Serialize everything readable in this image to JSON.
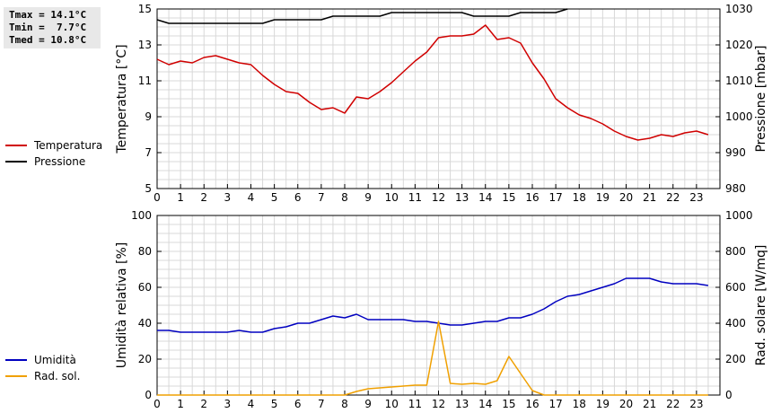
{
  "stats": {
    "tmax": "Tmax = 14.1°C",
    "tmin": "Tmin =  7.7°C",
    "tmed": "Tmed = 10.8°C"
  },
  "chart_data": [
    {
      "type": "line",
      "ylabel_left": "Temperatura [°C]",
      "ylabel_right": "Pressione [mbar]",
      "xlim": [
        0,
        24
      ],
      "ylim_left": [
        5,
        15
      ],
      "ylim_right": [
        980,
        1030
      ],
      "xticks": [
        0,
        1,
        2,
        3,
        4,
        5,
        6,
        7,
        8,
        9,
        10,
        11,
        12,
        13,
        14,
        15,
        16,
        17,
        18,
        19,
        20,
        21,
        22,
        23
      ],
      "yticks_left": [
        5,
        7,
        9,
        11,
        13,
        15
      ],
      "yticks_right": [
        980,
        990,
        1000,
        1010,
        1020,
        1030
      ],
      "grid": true,
      "legend_position": "left",
      "series": [
        {
          "name": "Temperatura",
          "axis": "left",
          "color": "#d00000",
          "x": [
            0,
            0.5,
            1,
            1.5,
            2,
            2.5,
            3,
            3.5,
            4,
            4.5,
            5,
            5.5,
            6,
            6.5,
            7,
            7.5,
            8,
            8.5,
            9,
            9.5,
            10,
            10.5,
            11,
            11.5,
            12,
            12.5,
            13,
            13.5,
            14,
            14.5,
            15,
            15.5,
            16,
            16.5,
            17,
            17.5,
            18,
            18.5,
            19,
            19.5,
            20,
            20.5,
            21,
            21.5,
            22,
            22.5,
            23,
            23.5
          ],
          "values": [
            12.2,
            11.9,
            12.1,
            12.0,
            12.3,
            12.4,
            12.2,
            12.0,
            11.9,
            11.3,
            10.8,
            10.4,
            10.3,
            9.8,
            9.4,
            9.5,
            9.2,
            10.1,
            10.0,
            10.4,
            10.9,
            11.5,
            12.1,
            12.6,
            13.4,
            13.5,
            13.5,
            13.6,
            14.1,
            13.3,
            13.4,
            13.1,
            12.0,
            11.1,
            10.0,
            9.5,
            9.1,
            8.9,
            8.6,
            8.2,
            7.9,
            7.7,
            7.8,
            8.0,
            7.9,
            8.1,
            8.2,
            8.0
          ]
        },
        {
          "name": "Pressione",
          "axis": "right",
          "color": "#000000",
          "x": [
            0,
            0.5,
            1,
            1.5,
            2,
            2.5,
            3,
            3.5,
            4,
            4.5,
            5,
            5.5,
            6,
            6.5,
            7,
            7.5,
            8,
            8.5,
            9,
            9.5,
            10,
            10.5,
            11,
            11.5,
            12,
            12.5,
            13,
            13.5,
            14,
            14.5,
            15,
            15.5,
            16,
            16.5,
            17,
            17.5
          ],
          "values": [
            1027,
            1026,
            1026,
            1026,
            1026,
            1026,
            1026,
            1026,
            1026,
            1026,
            1027,
            1027,
            1027,
            1027,
            1027,
            1028,
            1028,
            1028,
            1028,
            1028,
            1029,
            1029,
            1029,
            1029,
            1029,
            1029,
            1029,
            1028,
            1028,
            1028,
            1028,
            1029,
            1029,
            1029,
            1029,
            1030
          ]
        }
      ]
    },
    {
      "type": "line",
      "ylabel_left": "Umidità relativa [%]",
      "ylabel_right": "Rad. solare [W/mq]",
      "xlim": [
        0,
        24
      ],
      "ylim_left": [
        0,
        100
      ],
      "ylim_right": [
        0,
        1000
      ],
      "xticks": [
        0,
        1,
        2,
        3,
        4,
        5,
        6,
        7,
        8,
        9,
        10,
        11,
        12,
        13,
        14,
        15,
        16,
        17,
        18,
        19,
        20,
        21,
        22,
        23
      ],
      "yticks_left": [
        0,
        20,
        40,
        60,
        80,
        100
      ],
      "yticks_right": [
        0,
        200,
        400,
        600,
        800,
        1000
      ],
      "grid": true,
      "legend_position": "left",
      "series": [
        {
          "name": "Umidità",
          "axis": "left",
          "color": "#0000c0",
          "x": [
            0,
            0.5,
            1,
            1.5,
            2,
            2.5,
            3,
            3.5,
            4,
            4.5,
            5,
            5.5,
            6,
            6.5,
            7,
            7.5,
            8,
            8.5,
            9,
            9.5,
            10,
            10.5,
            11,
            11.5,
            12,
            12.5,
            13,
            13.5,
            14,
            14.5,
            15,
            15.5,
            16,
            16.5,
            17,
            17.5,
            18,
            18.5,
            19,
            19.5,
            20,
            20.5,
            21,
            21.5,
            22,
            22.5,
            23,
            23.5
          ],
          "values": [
            36,
            36,
            35,
            35,
            35,
            35,
            35,
            36,
            35,
            35,
            37,
            38,
            40,
            40,
            42,
            44,
            43,
            45,
            42,
            42,
            42,
            42,
            41,
            41,
            40,
            39,
            39,
            40,
            41,
            41,
            43,
            43,
            45,
            48,
            52,
            55,
            56,
            58,
            60,
            62,
            65,
            65,
            65,
            63,
            62,
            62,
            62,
            61
          ]
        },
        {
          "name": "Rad. sol.",
          "axis": "right",
          "color": "#f0a000",
          "x": [
            0,
            0.5,
            1,
            1.5,
            2,
            2.5,
            3,
            3.5,
            4,
            4.5,
            5,
            5.5,
            6,
            6.5,
            7,
            7.5,
            8,
            8.5,
            9,
            9.5,
            10,
            10.5,
            11,
            11.5,
            12,
            12.5,
            13,
            13.5,
            14,
            14.5,
            15,
            15.5,
            16,
            16.5,
            17,
            17.5,
            18,
            18.5,
            19,
            19.5,
            20,
            20.5,
            21,
            21.5,
            22,
            22.5,
            23,
            23.5
          ],
          "values": [
            0,
            0,
            0,
            0,
            0,
            0,
            0,
            0,
            0,
            0,
            0,
            0,
            0,
            0,
            0,
            0,
            0,
            20,
            35,
            40,
            45,
            50,
            55,
            55,
            410,
            65,
            60,
            65,
            60,
            80,
            215,
            120,
            25,
            0,
            0,
            0,
            0,
            0,
            0,
            0,
            0,
            0,
            0,
            0,
            0,
            0,
            0,
            0
          ]
        }
      ]
    }
  ]
}
